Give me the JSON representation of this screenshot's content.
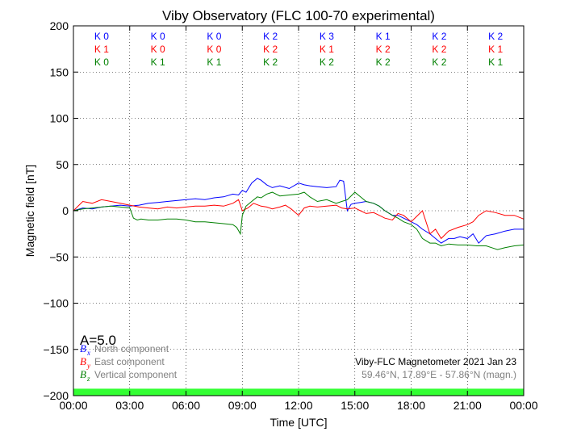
{
  "chart_data": {
    "type": "line",
    "title": "Viby Observatory (FLC 100-70 experimental)",
    "xlabel": "Time [UTC]",
    "ylabel": "Magnetic field [nT]",
    "xlim": [
      "00:00",
      "24:00"
    ],
    "ylim": [
      -200,
      200
    ],
    "grid": true,
    "x_tick_labels": [
      "00:00",
      "03:00",
      "06:00",
      "09:00",
      "12:00",
      "15:00",
      "18:00",
      "21:00",
      "00:00"
    ],
    "y_ticks": [
      -200,
      -150,
      -100,
      -50,
      0,
      50,
      100,
      150,
      200
    ],
    "y_tick_labels": [
      "−200",
      "−150",
      "−100",
      "−50",
      "0",
      "50",
      "100",
      "150",
      "200"
    ],
    "k_index_rows": [
      {
        "color": "#0000ff",
        "labels": [
          "K 0",
          "K 0",
          "K 0",
          "K 2",
          "K 3",
          "K 1",
          "K 2",
          "K 2"
        ]
      },
      {
        "color": "#ff0000",
        "labels": [
          "K 1",
          "K 0",
          "K 0",
          "K 2",
          "K 1",
          "K 2",
          "K 2",
          "K 1"
        ]
      },
      {
        "color": "#008000",
        "labels": [
          "K 0",
          "K 1",
          "K 1",
          "K 2",
          "K 2",
          "K 2",
          "K 2",
          "K 1"
        ]
      }
    ],
    "a_index": "A=5.0",
    "series": [
      {
        "name": "North component",
        "symbol": "B",
        "subscript": "x",
        "color": "#0000ff",
        "x": [
          0,
          0.5,
          1,
          1.5,
          2,
          2.5,
          3,
          3.5,
          4,
          4.5,
          5,
          5.5,
          6,
          6.5,
          7,
          7.5,
          8,
          8.5,
          8.8,
          9,
          9.2,
          9.5,
          9.8,
          10,
          10.3,
          10.6,
          11,
          11.5,
          12,
          12.3,
          12.6,
          13,
          13.5,
          14,
          14.2,
          14.4,
          14.6,
          14.8,
          15,
          15.3,
          15.6,
          16,
          16.3,
          16.6,
          17,
          17.3,
          17.6,
          18,
          18.3,
          18.6,
          19,
          19.3,
          19.6,
          20,
          20.3,
          20.6,
          21,
          21.3,
          21.6,
          22,
          22.5,
          23,
          23.5,
          24
        ],
        "y": [
          0,
          3,
          2,
          4,
          5,
          6,
          5,
          6,
          8,
          9,
          10,
          11,
          12,
          13,
          12,
          14,
          15,
          18,
          17,
          22,
          20,
          30,
          35,
          33,
          28,
          25,
          27,
          24,
          30,
          28,
          27,
          26,
          25,
          26,
          33,
          32,
          0,
          7,
          8,
          9,
          10,
          8,
          5,
          0,
          -5,
          -5,
          -8,
          -12,
          -15,
          -20,
          -25,
          -30,
          -35,
          -30,
          -30,
          -28,
          -30,
          -25,
          -35,
          -27,
          -25,
          -22,
          -20,
          -20
        ]
      },
      {
        "name": "East component",
        "symbol": "B",
        "subscript": "y",
        "color": "#ff0000",
        "x": [
          0,
          0.5,
          1,
          1.5,
          2,
          2.5,
          3,
          3.5,
          4,
          4.5,
          5,
          5.5,
          6,
          6.5,
          7,
          7.5,
          8,
          8.5,
          8.8,
          9,
          9.3,
          9.6,
          10,
          10.3,
          10.6,
          11,
          11.3,
          11.6,
          12,
          12.3,
          12.6,
          13,
          13.5,
          14,
          14.3,
          14.6,
          15,
          15.3,
          15.6,
          16,
          16.3,
          16.6,
          17,
          17.3,
          17.6,
          18,
          18.3,
          18.6,
          19,
          19.3,
          19.6,
          20,
          20.5,
          21,
          21.3,
          21.6,
          22,
          22.5,
          23,
          23.5,
          24
        ],
        "y": [
          0,
          10,
          8,
          12,
          10,
          8,
          6,
          4,
          3,
          2,
          4,
          3,
          4,
          5,
          5,
          6,
          5,
          8,
          12,
          0,
          3,
          8,
          5,
          4,
          2,
          4,
          6,
          2,
          -5,
          3,
          5,
          4,
          5,
          6,
          3,
          2,
          3,
          0,
          -3,
          -2,
          -5,
          -8,
          -10,
          -3,
          -5,
          -12,
          -6,
          0,
          -25,
          -20,
          -30,
          -22,
          -18,
          -15,
          -12,
          -5,
          0,
          -2,
          -5,
          -5,
          -9
        ]
      },
      {
        "name": "Vertical component",
        "symbol": "B",
        "subscript": "z",
        "color": "#008000",
        "x": [
          0,
          0.5,
          1,
          1.5,
          2,
          2.5,
          3,
          3.2,
          3.4,
          3.6,
          4,
          4.5,
          5,
          5.5,
          6,
          6.5,
          7,
          7.5,
          8,
          8.5,
          8.7,
          8.9,
          9,
          9.2,
          9.5,
          9.8,
          10,
          10.3,
          10.6,
          11,
          11.5,
          12,
          12.3,
          12.6,
          13,
          13.5,
          14,
          14.3,
          14.6,
          15,
          15.3,
          15.6,
          16,
          16.3,
          16.6,
          17,
          17.3,
          17.6,
          18,
          18.3,
          18.6,
          19,
          19.3,
          19.6,
          20,
          20.5,
          21,
          21.5,
          22,
          22.3,
          22.6,
          23,
          23.5,
          24
        ],
        "y": [
          0,
          2,
          3,
          4,
          5,
          4,
          3,
          -8,
          -10,
          -9,
          -10,
          -10,
          -9,
          -9,
          -10,
          -12,
          -12,
          -13,
          -14,
          -15,
          -18,
          -25,
          -5,
          5,
          10,
          15,
          14,
          18,
          20,
          16,
          17,
          18,
          20,
          15,
          10,
          12,
          8,
          10,
          12,
          20,
          15,
          10,
          8,
          5,
          0,
          -5,
          -8,
          -12,
          -15,
          -20,
          -30,
          -35,
          -35,
          -38,
          -36,
          -37,
          -37,
          -38,
          -38,
          -40,
          -42,
          -40,
          -38,
          -37
        ]
      }
    ],
    "instrument_line1": "Viby-FLC Magnetometer 2021 Jan 23",
    "instrument_line2": "59.46°N, 17.89°E - 57.86°N (magn.)",
    "daylight_bar_color": "#33ff33",
    "grid_color": "#000000",
    "legend_text_color": "#808080"
  }
}
